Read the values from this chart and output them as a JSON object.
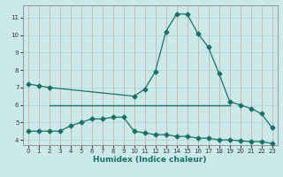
{
  "xlabel": "Humidex (Indice chaleur)",
  "xlim": [
    -0.5,
    23.5
  ],
  "ylim": [
    3.7,
    11.7
  ],
  "xticks": [
    0,
    1,
    2,
    3,
    4,
    5,
    6,
    7,
    8,
    9,
    10,
    11,
    12,
    13,
    14,
    15,
    16,
    17,
    18,
    19,
    20,
    21,
    22,
    23
  ],
  "yticks": [
    4,
    5,
    6,
    7,
    8,
    9,
    10,
    11
  ],
  "bg_color": "#cce9e9",
  "line_color": "#1a7068",
  "grid_x_color": "#d4a0a0",
  "grid_y_color": "#aad4d4",
  "line1_x": [
    0,
    1,
    2,
    10,
    11,
    12,
    13,
    14,
    15,
    16,
    17,
    18,
    19,
    20,
    21,
    22,
    23
  ],
  "line1_y": [
    7.2,
    7.1,
    7.0,
    6.5,
    6.9,
    7.9,
    10.2,
    11.2,
    11.2,
    10.1,
    9.3,
    7.8,
    6.2,
    6.0,
    5.8,
    5.5,
    4.7
  ],
  "line2_x": [
    2,
    19
  ],
  "line2_y": [
    6.0,
    6.0
  ],
  "line3_x": [
    0,
    1,
    2,
    3,
    4,
    5,
    6,
    7,
    8,
    9,
    10,
    11,
    12,
    13,
    14,
    15,
    16,
    17,
    18,
    19,
    20,
    21,
    22,
    23
  ],
  "line3_y": [
    4.5,
    4.5,
    4.5,
    4.5,
    4.8,
    5.0,
    5.2,
    5.2,
    5.3,
    5.3,
    4.5,
    4.4,
    4.3,
    4.3,
    4.2,
    4.2,
    4.1,
    4.1,
    4.0,
    4.0,
    3.95,
    3.9,
    3.9,
    3.8
  ]
}
